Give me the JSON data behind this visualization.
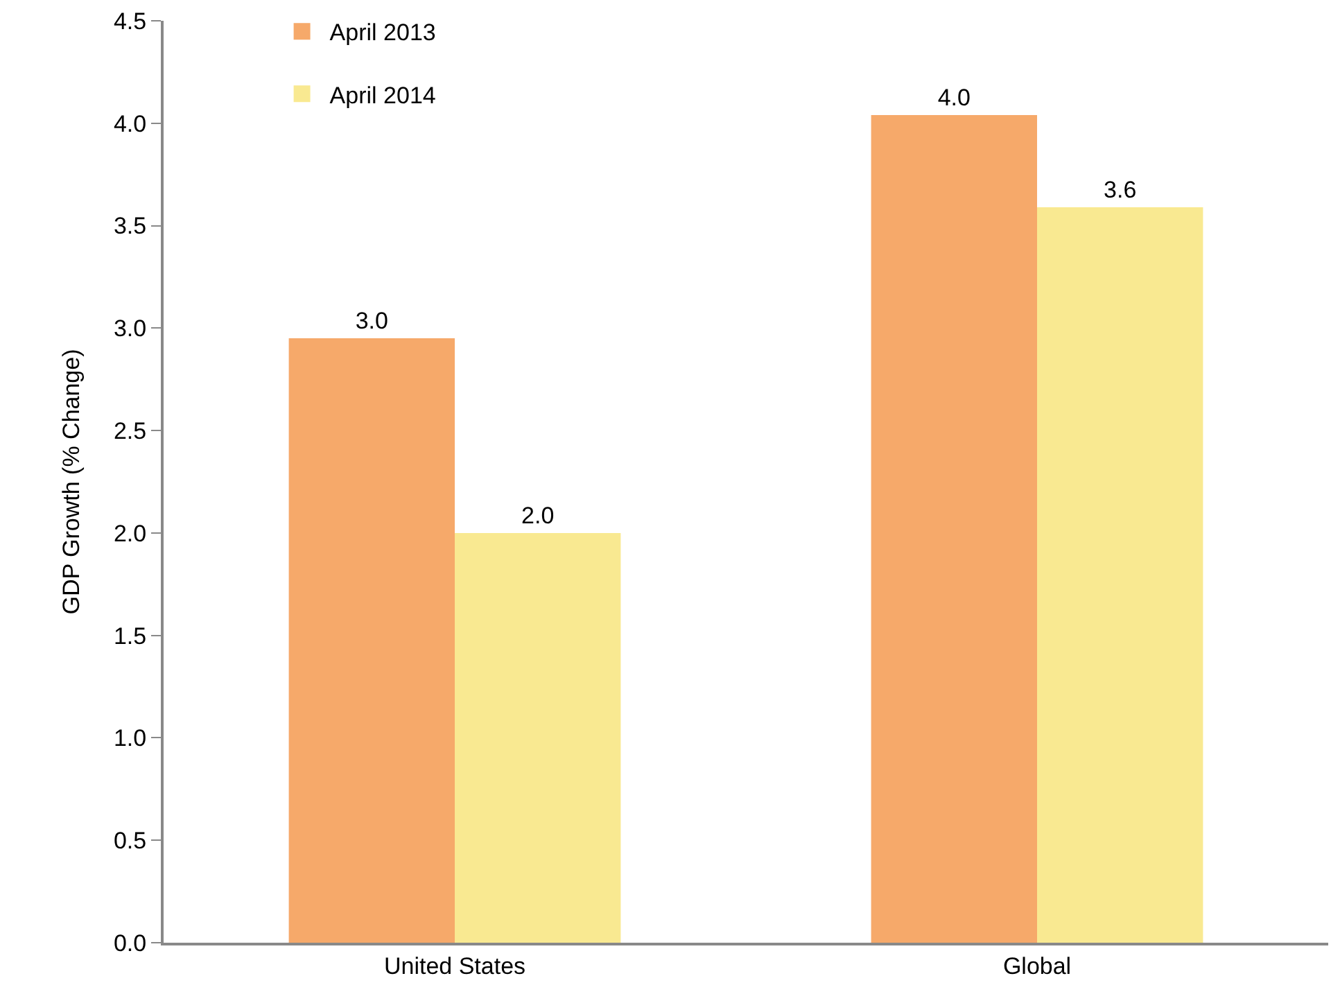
{
  "chart_data": {
    "type": "bar",
    "ylabel": "GDP Growth (% Change)",
    "categories": [
      "United States",
      "Global"
    ],
    "series": [
      {
        "name": "April 2013",
        "color": "#f6a96a",
        "values": [
          2.95,
          4.04
        ],
        "value_labels": [
          "3.0",
          "4.0"
        ]
      },
      {
        "name": "April 2014",
        "color": "#f9e991",
        "values": [
          2.0,
          3.59
        ],
        "value_labels": [
          "2.0",
          "3.6"
        ]
      }
    ],
    "ylim": [
      0,
      4.5
    ],
    "yticks": [
      "0.0",
      "0.5",
      "1.0",
      "1.5",
      "2.0",
      "2.5",
      "3.0",
      "3.5",
      "4.0",
      "4.5"
    ],
    "grid": false,
    "legend": "top left"
  }
}
